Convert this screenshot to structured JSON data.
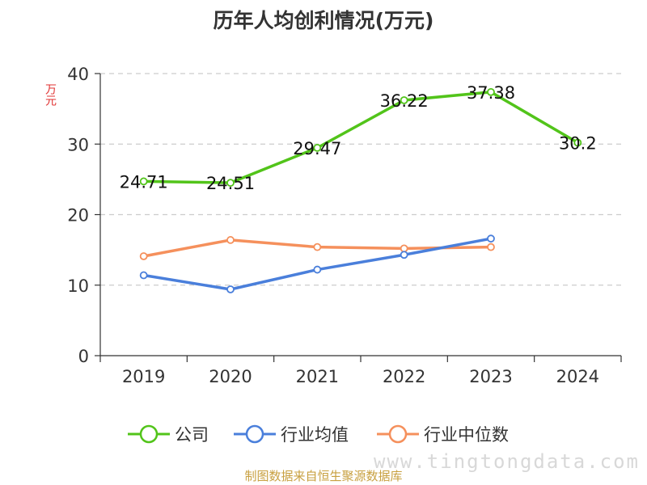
{
  "title": "历年人均创利情况(万元)",
  "source_note": "制图数据来自恒生聚源数据库",
  "watermark": "www.tingtongdata.com",
  "chart_data": {
    "type": "line",
    "title": "历年人均创利情况(万元)",
    "ylabel": "万元",
    "xlabel": "",
    "categories": [
      "2019",
      "2020",
      "2021",
      "2022",
      "2023",
      "2024"
    ],
    "ylim": [
      0,
      40
    ],
    "yticks": [
      0,
      10,
      20,
      30,
      40
    ],
    "grid": true,
    "legend_position": "bottom",
    "series": [
      {
        "name": "公司",
        "color": "#52c41a",
        "values": [
          24.71,
          24.51,
          29.47,
          36.22,
          37.38,
          30.2
        ],
        "labels": [
          "24.71",
          "24.51",
          "29.47",
          "36.22",
          "37.38",
          "30.2"
        ]
      },
      {
        "name": "行业均值",
        "color": "#4a7fdb",
        "values": [
          11.4,
          9.4,
          12.2,
          14.3,
          16.6,
          null
        ]
      },
      {
        "name": "行业中位数",
        "color": "#f5905c",
        "values": [
          14.1,
          16.4,
          15.4,
          15.2,
          15.4,
          null
        ]
      }
    ]
  }
}
